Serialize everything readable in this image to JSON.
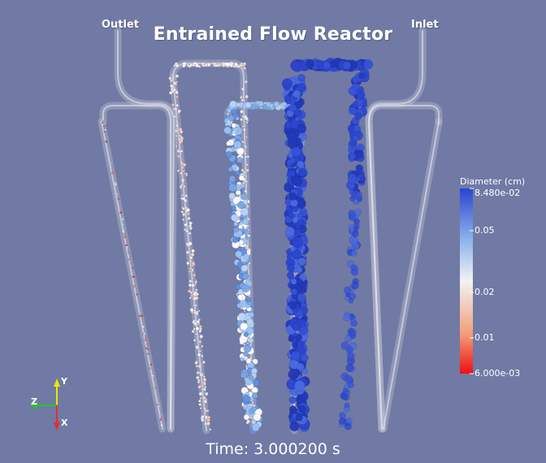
{
  "title": "Entrained Flow Reactor",
  "labels": {
    "outlet": "Outlet",
    "inlet": "Inlet"
  },
  "time_label": "Time: 3.000200 s",
  "legend": {
    "title": "Diameter (cm)",
    "ticks": [
      {
        "label": "8.480e-02",
        "value": 0.0848
      },
      {
        "label": "0.05",
        "value": 0.05
      },
      {
        "label": "0.02",
        "value": 0.02
      },
      {
        "label": "0.01",
        "value": 0.01
      },
      {
        "label": "6.000e-03",
        "value": 0.006
      }
    ],
    "scale": "log",
    "range": [
      0.006,
      0.0848
    ],
    "colors": {
      "high": "#2b45cf",
      "mid_high": "#8cb4ec",
      "mid": "#f2f2f2",
      "low": "#f2a07c",
      "min": "#ee1010"
    }
  },
  "axes": {
    "y": "Y",
    "z": "Z",
    "x": "X",
    "colors": {
      "y": "#e8e800",
      "z": "#26c826",
      "x": "#e03030"
    }
  },
  "colors": {
    "background": "#707aa4",
    "tube": "#d8dbe6",
    "text": "#ffffff"
  }
}
